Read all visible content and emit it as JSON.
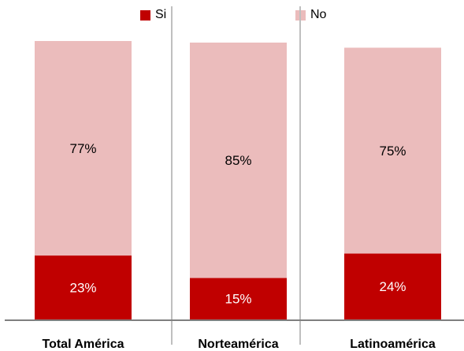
{
  "chart_data": {
    "type": "bar",
    "stacked": true,
    "percent": true,
    "categories": [
      "Total América",
      "Norteamérica",
      "Latinoamérica"
    ],
    "series": [
      {
        "name": "Si",
        "values": [
          23,
          15,
          24
        ],
        "labels": [
          "23%",
          "15%",
          "24%"
        ],
        "color": "#c00000",
        "label_color": "#ffffff"
      },
      {
        "name": "No",
        "values": [
          77,
          85,
          75
        ],
        "labels": [
          "77%",
          "85%",
          "75%"
        ],
        "color": "#ebbcbc",
        "label_color": "#000000"
      }
    ],
    "ylim": [
      0,
      100
    ],
    "legend_position": "top",
    "grid": false,
    "axis_color": "#7f7f7f",
    "separator_color": "#bfbfbf"
  }
}
